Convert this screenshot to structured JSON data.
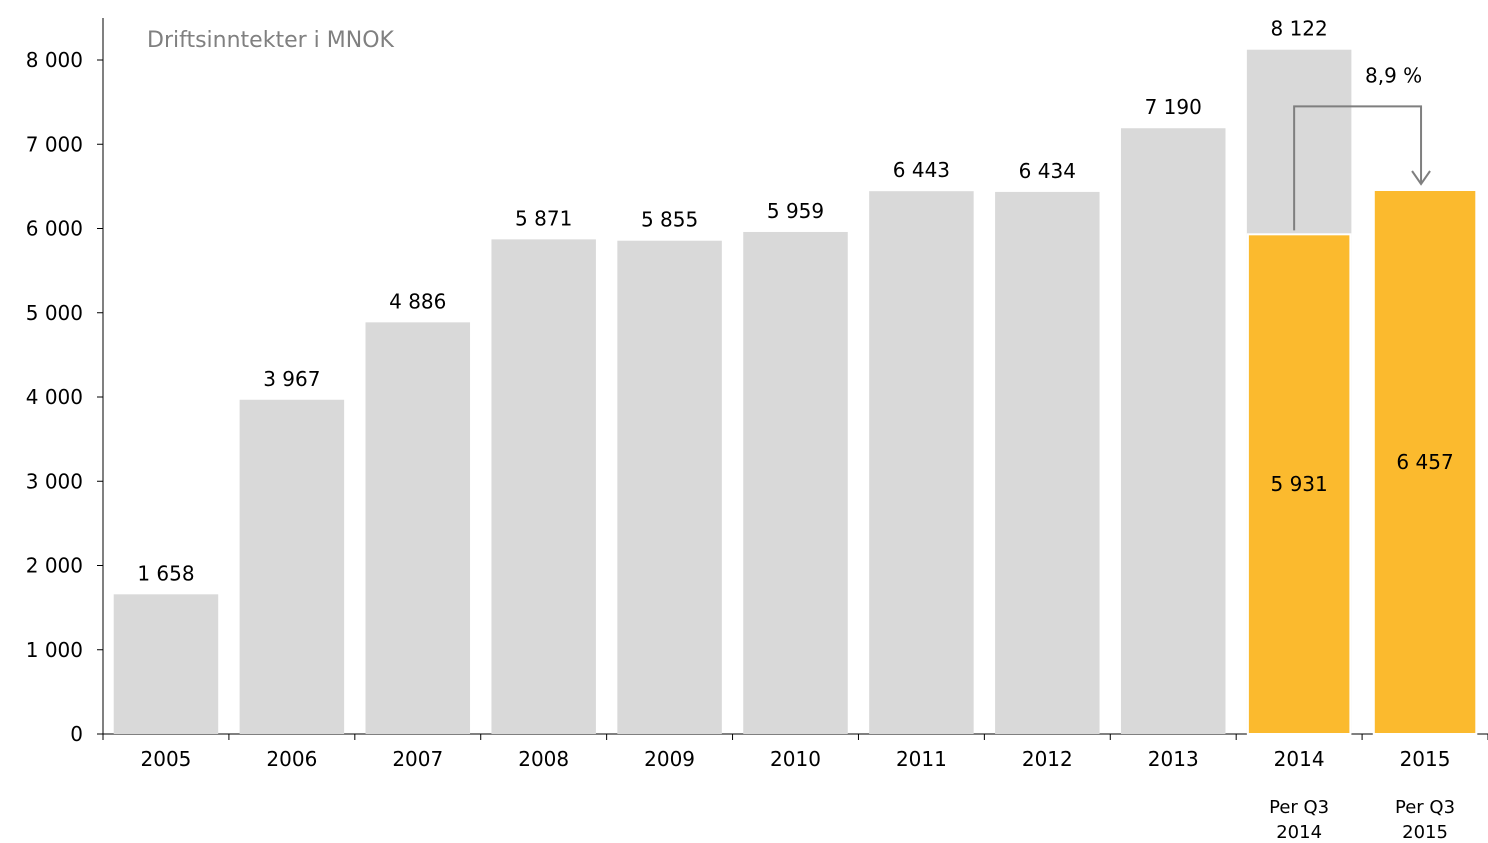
{
  "chart_data": {
    "type": "bar",
    "title": "Driftsinntekter i MNOK",
    "xlabel": "",
    "ylabel": "",
    "ylim": [
      0,
      8000
    ],
    "yticks": [
      0,
      1000,
      2000,
      3000,
      4000,
      5000,
      6000,
      7000,
      8000
    ],
    "ytick_labels": [
      "0",
      "1 000",
      "2 000",
      "3 000",
      "4 000",
      "5 000",
      "6 000",
      "7 000",
      "8 000"
    ],
    "categories": [
      "2005",
      "2006",
      "2007",
      "2008",
      "2009",
      "2010",
      "2011",
      "2012",
      "2013",
      "2014",
      "2015"
    ],
    "grid": false,
    "colors": {
      "annual": "#d9d9d9",
      "ytd": "#fbba2e",
      "arrow": "#7f7f7f",
      "axis": "#000000"
    },
    "series": [
      {
        "values": [
          1658,
          3967,
          4886,
          5871,
          5855,
          5959,
          6443,
          6434,
          7190,
          8122,
          null
        ],
        "labels": [
          "1 658",
          "3 967",
          "4 886",
          "5 871",
          "5 855",
          "5 959",
          "6 443",
          "6 434",
          "7 190",
          "8 122",
          ""
        ]
      },
      {
        "values": [
          null,
          null,
          null,
          null,
          null,
          null,
          null,
          null,
          null,
          5931,
          6457
        ],
        "labels": [
          "",
          "",
          "",
          "",
          "",
          "",
          "",
          "",
          "",
          "5 931",
          "6 457"
        ]
      }
    ],
    "sub_labels": [
      {
        "category": "2014",
        "lines": [
          "Per Q3",
          "2014"
        ]
      },
      {
        "category": "2015",
        "lines": [
          "Per Q3",
          "2015"
        ]
      }
    ],
    "annotation": {
      "text": "8,9 %",
      "from": "2014",
      "to": "2015"
    }
  }
}
